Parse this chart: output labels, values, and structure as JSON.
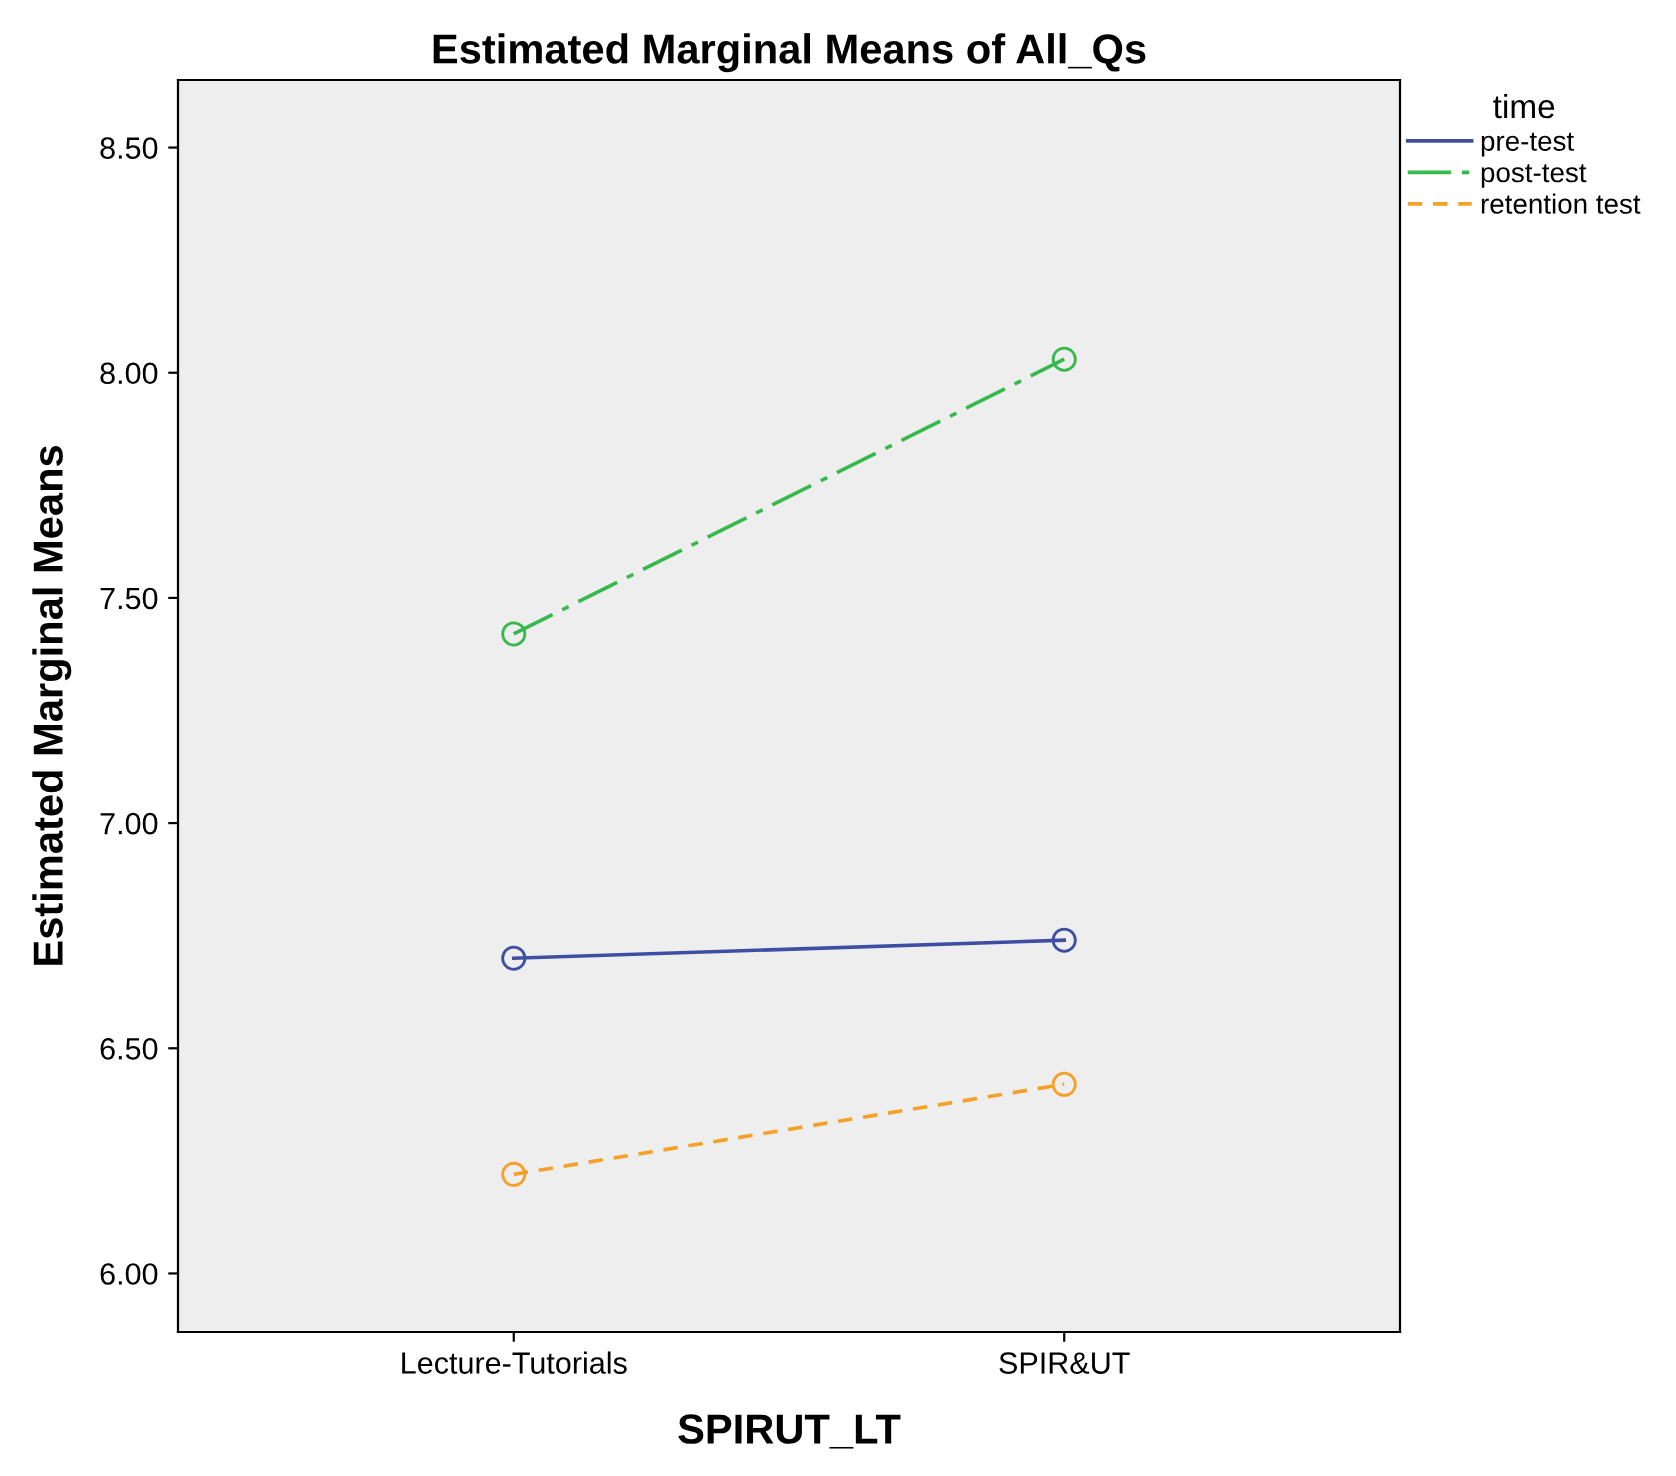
{
  "chart_data": {
    "type": "line",
    "title": "Estimated Marginal Means of All_Qs",
    "xlabel": "SPIRUT_LT",
    "ylabel": "Estimated Marginal Means",
    "legend_title": "time",
    "categories": [
      "Lecture-Tutorials",
      "SPIR&UT"
    ],
    "series": [
      {
        "name": "pre-test",
        "color": "#3e4fa3",
        "values": [
          6.7,
          6.74
        ],
        "line_style": "solid"
      },
      {
        "name": "post-test",
        "color": "#35b94a",
        "values": [
          7.42,
          8.03
        ],
        "line_style": "dashed"
      },
      {
        "name": "retention test",
        "color": "#f5a026",
        "values": [
          6.22,
          6.42
        ],
        "line_style": "dotted"
      }
    ],
    "ylim": [
      5.87,
      8.65
    ],
    "yticks": [
      {
        "value": 6.0,
        "label": "6.00"
      },
      {
        "value": 6.5,
        "label": "6.50"
      },
      {
        "value": 7.0,
        "label": "7.00"
      },
      {
        "value": 7.5,
        "label": "7.50"
      },
      {
        "value": 8.0,
        "label": "8.00"
      },
      {
        "value": 8.5,
        "label": "8.50"
      }
    ],
    "marker": "circle",
    "grid": false,
    "legend": "top right"
  }
}
